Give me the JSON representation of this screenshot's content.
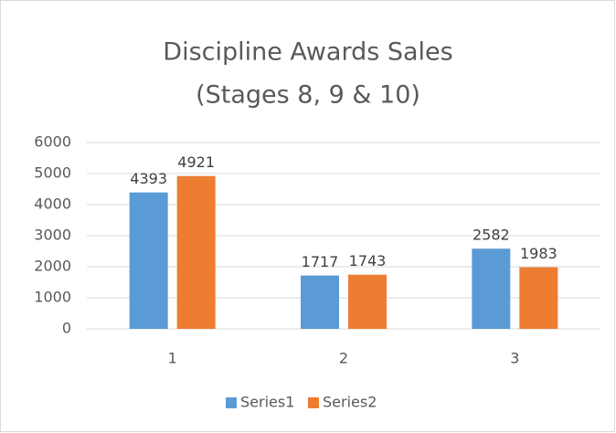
{
  "chart_data": {
    "type": "bar",
    "title": [
      "Discipline Awards Sales",
      "(Stages 8, 9 & 10)"
    ],
    "categories": [
      "1",
      "2",
      "3"
    ],
    "series": [
      {
        "name": "Series1",
        "color": "#5b9bd5",
        "values": [
          4393,
          1717,
          2582
        ]
      },
      {
        "name": "Series2",
        "color": "#ed7d31",
        "values": [
          4921,
          1743,
          1983
        ]
      }
    ],
    "ylim": [
      0,
      6000
    ],
    "yticks": [
      0,
      1000,
      2000,
      3000,
      4000,
      5000,
      6000
    ],
    "grid": true,
    "legend": "bottom"
  }
}
